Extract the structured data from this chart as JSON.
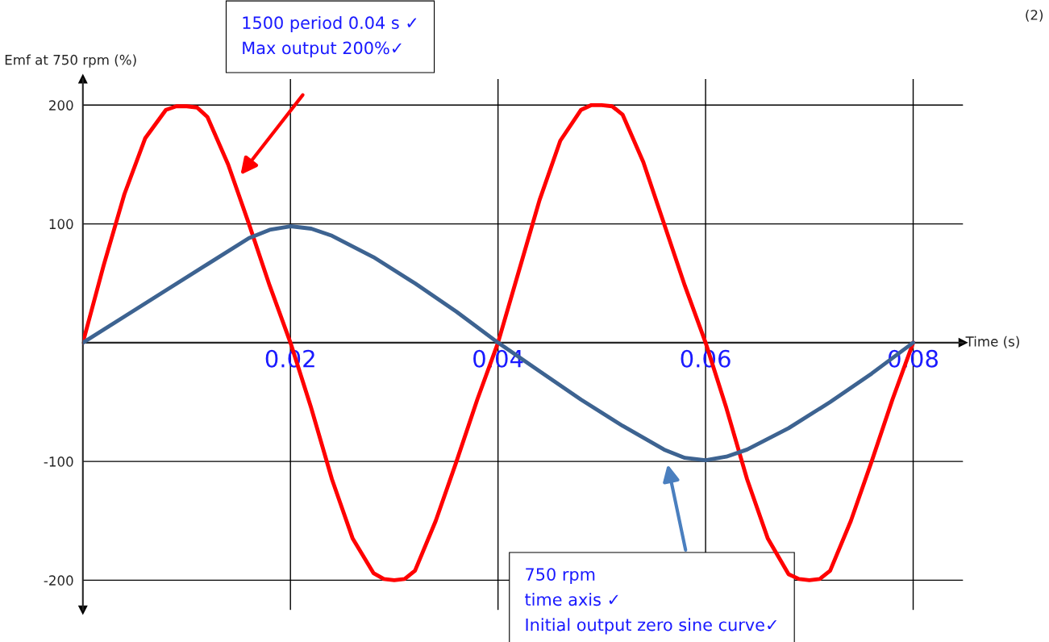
{
  "chart_data": {
    "type": "line",
    "xlabel": "Time (s)",
    "ylabel": "Emf at 750 rpm (%)",
    "xlim": [
      0,
      0.0848
    ],
    "ylim": [
      -225,
      222
    ],
    "xticks": [
      0.02,
      0.04,
      0.06,
      0.08
    ],
    "yticks": [
      -200,
      -100,
      100,
      200
    ],
    "grid": true,
    "marker": "none",
    "line_style": "solid",
    "series": [
      {
        "color": "#ff0000",
        "x": [
          0,
          0.002,
          0.004,
          0.006,
          0.008,
          0.009,
          0.01,
          0.011,
          0.012,
          0.014,
          0.016,
          0.018,
          0.02,
          0.022,
          0.024,
          0.026,
          0.028,
          0.029,
          0.03,
          0.031,
          0.032,
          0.034,
          0.036,
          0.038,
          0.04,
          0.042,
          0.044,
          0.046,
          0.048,
          0.049,
          0.05,
          0.051,
          0.052,
          0.054,
          0.056,
          0.058,
          0.06,
          0.062,
          0.064,
          0.066,
          0.068,
          0.069,
          0.07,
          0.071,
          0.072,
          0.074,
          0.076,
          0.078,
          0.08
        ],
        "values": [
          0,
          65,
          125,
          172,
          196,
          199,
          199,
          198,
          190,
          150,
          100,
          48,
          0,
          -55,
          -115,
          -165,
          -194,
          -199,
          -200,
          -199,
          -192,
          -150,
          -100,
          -48,
          0,
          60,
          120,
          170,
          196,
          200,
          200,
          199,
          192,
          152,
          100,
          48,
          0,
          -55,
          -115,
          -165,
          -195,
          -199,
          -200,
          -199,
          -192,
          -150,
          -100,
          -48,
          0
        ]
      },
      {
        "color": "#3d6391",
        "x": [
          0,
          0.004,
          0.008,
          0.012,
          0.016,
          0.018,
          0.02,
          0.022,
          0.024,
          0.028,
          0.032,
          0.036,
          0.04,
          0.044,
          0.048,
          0.052,
          0.056,
          0.058,
          0.06,
          0.062,
          0.064,
          0.068,
          0.072,
          0.076,
          0.08
        ],
        "values": [
          0,
          22,
          44,
          66,
          88,
          95,
          98,
          96,
          90,
          72,
          50,
          26,
          0,
          -24,
          -48,
          -70,
          -90,
          -97,
          -99,
          -96,
          -90,
          -72,
          -50,
          -26,
          0
        ]
      }
    ],
    "annotations": [
      "1500 period 0.04 s ✓\nMax output 200%✓",
      "750 rpm\ntime axis ✓\nInitial output zero sine curve✓",
      "(2)"
    ]
  }
}
